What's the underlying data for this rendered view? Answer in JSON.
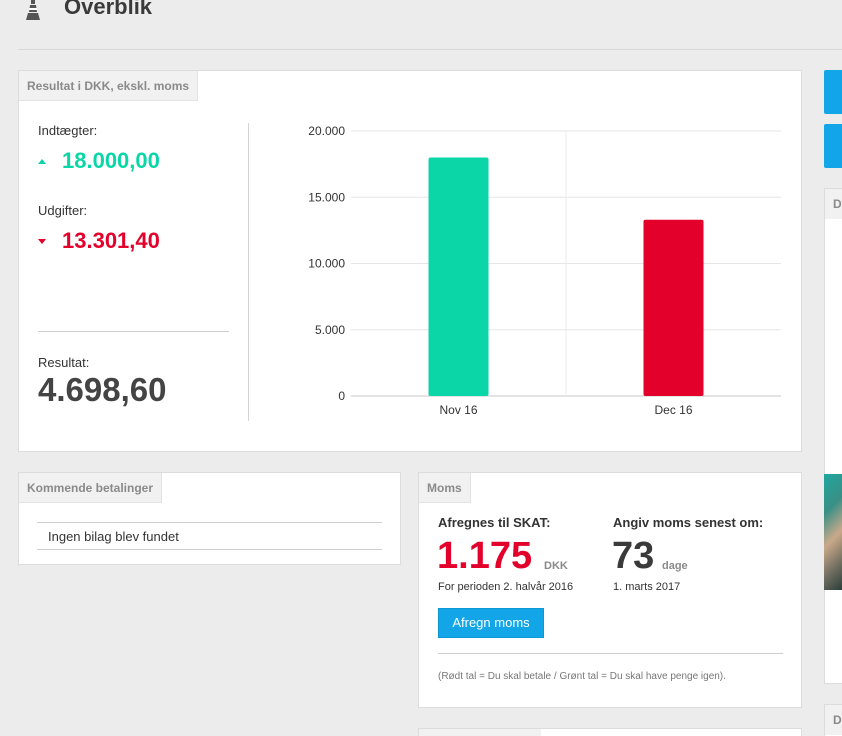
{
  "header": {
    "title": "Overblik",
    "logo_icon": "lighthouse-icon"
  },
  "resultat": {
    "tab": "Resultat i DKK, ekskl. moms",
    "income_label": "Indtægter:",
    "income_value": "18.000,00",
    "expense_label": "Udgifter:",
    "expense_value": "13.301,40",
    "result_label": "Resultat:",
    "result_value": "4.698,60"
  },
  "chart_data": {
    "type": "bar",
    "categories": [
      "Nov 16",
      "Dec 16"
    ],
    "values": [
      18000,
      13301.4
    ],
    "colors": [
      "#0ad6a7",
      "#e3002b"
    ],
    "ylim": [
      0,
      20000
    ],
    "yticks": [
      "0",
      "5.000",
      "10.000",
      "15.000",
      "20.000"
    ],
    "grid": true,
    "xlabel": "",
    "ylabel": ""
  },
  "kommende": {
    "tab": "Kommende betalinger",
    "empty_text": "Ingen bilag blev fundet"
  },
  "moms": {
    "tab": "Moms",
    "afregnes_label": "Afregnes til SKAT:",
    "afregnes_value": "1.175",
    "afregnes_unit": "DKK",
    "afregnes_period": "For perioden 2. halvår 2016",
    "angiv_label": "Angiv moms senest om:",
    "angiv_value": "73",
    "angiv_unit": "dage",
    "angiv_date": "1. marts 2017",
    "button": "Afregn moms",
    "note": "(Rødt tal = Du skal betale / Grønt tal = Du skal have penge igen)."
  },
  "side": {
    "tab1": "D",
    "tab2": "D"
  },
  "colors": {
    "accent": "#12a6e8",
    "positive": "#0ad6a7",
    "negative": "#e3002b"
  }
}
